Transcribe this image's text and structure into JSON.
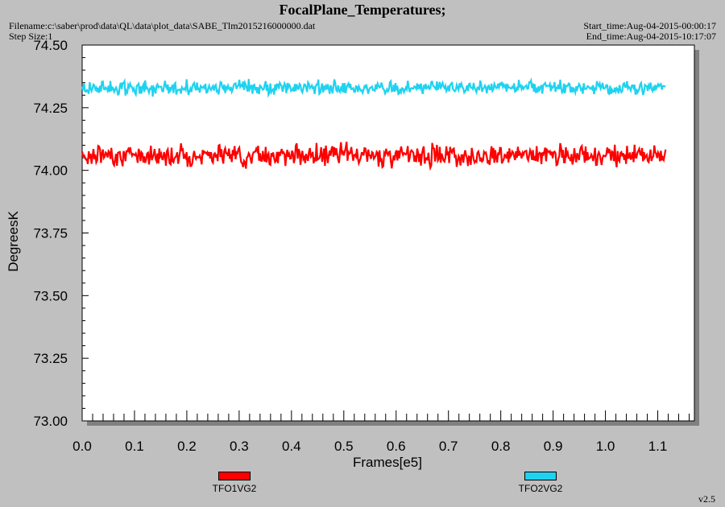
{
  "header": {
    "title": "FocalPlane_Temperatures;",
    "filename": "Filename:c:\\saber\\prod\\data\\QL\\data\\plot_data\\SABE_Tlm2015216000000.dat",
    "step_size": "Step Size:1",
    "start_time": "Start_time:Aug-04-2015-00:00:17",
    "end_time": "End_time:Aug-04-2015-10:17:07"
  },
  "footer": {
    "version": "v2.5"
  },
  "colors": {
    "series_1": "#ff0000",
    "series_2": "#1fd3f0",
    "plot_bg": "#ffffff",
    "page_bg": "#c0c0c0"
  },
  "chart_data": {
    "type": "line",
    "title": "FocalPlane_Temperatures;",
    "xlabel": "Frames[e5]",
    "ylabel": "DegreesK",
    "xlim": [
      0.0,
      1.17
    ],
    "ylim": [
      73.0,
      74.5
    ],
    "x_ticks": [
      "0.0",
      "0.1",
      "0.2",
      "0.3",
      "0.4",
      "0.5",
      "0.6",
      "0.7",
      "0.8",
      "0.9",
      "1.0",
      "1.1"
    ],
    "y_ticks": [
      "73.00",
      "73.25",
      "73.50",
      "73.75",
      "74.00",
      "74.25",
      "74.50"
    ],
    "grid": false,
    "legend_position": "bottom",
    "series": [
      {
        "name": "TFO1VG2",
        "x_range": [
          0.0,
          1.115
        ],
        "mean": 74.06,
        "band": [
          74.0,
          74.12
        ]
      },
      {
        "name": "TFO2VG2",
        "x_range": [
          0.0,
          1.115
        ],
        "mean": 74.33,
        "band": [
          74.29,
          74.37
        ]
      }
    ]
  }
}
